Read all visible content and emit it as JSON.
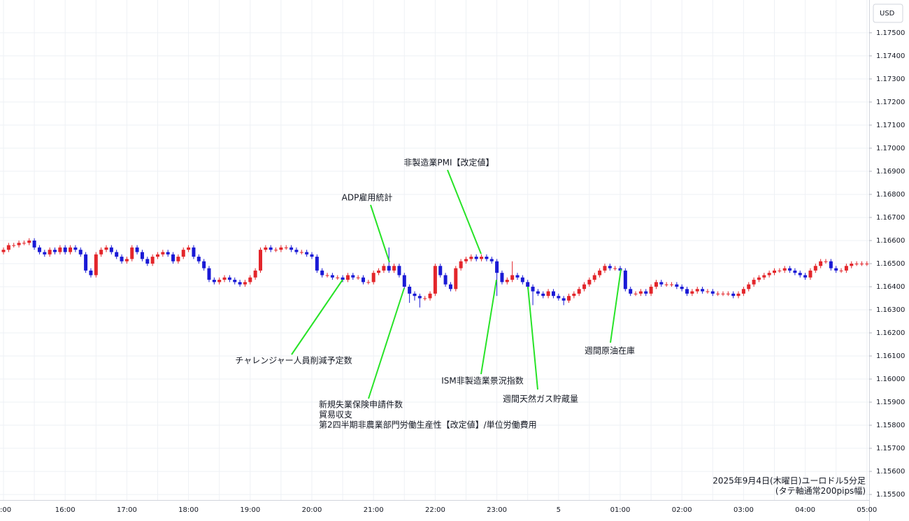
{
  "chart_data": {
    "type": "candlestick",
    "currency": "USD",
    "up_color": "#e3262b",
    "down_color": "#1a1ad6",
    "categories": [
      ":00",
      null,
      null,
      null,
      null,
      null,
      null,
      null,
      null,
      null,
      null,
      null,
      "16:00",
      null,
      null,
      null,
      null,
      null,
      null,
      null,
      null,
      null,
      null,
      null,
      "17:00",
      null,
      null,
      null,
      null,
      null,
      null,
      null,
      null,
      null,
      null,
      null,
      "18:00",
      null,
      null,
      null,
      null,
      null,
      null,
      null,
      null,
      null,
      null,
      null,
      "19:00",
      null,
      null,
      null,
      null,
      null,
      null,
      null,
      null,
      null,
      null,
      null,
      "20:00",
      null,
      null,
      null,
      null,
      null,
      null,
      null,
      null,
      null,
      null,
      null,
      "21:00",
      null,
      null,
      null,
      null,
      null,
      null,
      null,
      null,
      null,
      null,
      null,
      "22:00",
      null,
      null,
      null,
      null,
      null,
      null,
      null,
      null,
      null,
      null,
      null,
      "23:00",
      null,
      null,
      null,
      null,
      null,
      null,
      null,
      null,
      null,
      null,
      null,
      "5",
      null,
      null,
      null,
      null,
      null,
      null,
      null,
      null,
      null,
      null,
      null,
      "01:00",
      null,
      null,
      null,
      null,
      null,
      null,
      null,
      null,
      null,
      null,
      null,
      "02:00",
      null,
      null,
      null,
      null,
      null,
      null,
      null,
      null,
      null,
      null,
      null,
      "03:00",
      null,
      null,
      null,
      null,
      null,
      null,
      null,
      null,
      null,
      null,
      null,
      "04:00",
      null,
      null,
      null,
      null,
      null,
      null,
      null,
      null,
      null,
      null,
      null,
      "05:00"
    ],
    "open": [
      1.1655,
      1.1656,
      1.1658,
      1.1658,
      1.1659,
      1.1659,
      1.166,
      1.1657,
      1.1655,
      1.1654,
      1.1656,
      1.1655,
      1.1657,
      1.1655,
      1.1657,
      1.1656,
      1.1654,
      1.1647,
      1.1645,
      1.1654,
      1.1656,
      1.1657,
      1.1655,
      1.1653,
      1.1651,
      1.1652,
      1.1657,
      1.1655,
      1.1652,
      1.165,
      1.1653,
      1.1654,
      1.1655,
      1.1654,
      1.1651,
      1.1653,
      1.1656,
      1.1657,
      1.1653,
      1.1651,
      1.1648,
      1.1643,
      1.1642,
      1.1643,
      1.1644,
      1.1643,
      1.1642,
      1.1641,
      1.1642,
      1.1644,
      1.1647,
      1.1656,
      1.1657,
      1.1656,
      1.1656,
      1.1657,
      1.1657,
      1.1656,
      1.1655,
      1.1655,
      1.1654,
      1.1653,
      1.1647,
      1.1645,
      1.1645,
      1.1644,
      1.1644,
      1.1643,
      1.1645,
      1.1644,
      1.1644,
      1.1642,
      1.1642,
      1.1646,
      1.1647,
      1.1649,
      1.1647,
      1.1649,
      1.1645,
      1.164,
      1.1637,
      1.1636,
      1.1635,
      1.1635,
      1.1637,
      1.1649,
      1.1645,
      1.1641,
      1.1639,
      1.1648,
      1.1651,
      1.1652,
      1.1653,
      1.1652,
      1.1653,
      1.1652,
      1.1651,
      1.1646,
      1.1642,
      1.1643,
      1.1645,
      1.1644,
      1.1642,
      1.164,
      1.1638,
      1.1637,
      1.1636,
      1.1638,
      1.1636,
      1.1635,
      1.1634,
      1.1636,
      1.1637,
      1.1639,
      1.1641,
      1.1643,
      1.1645,
      1.1647,
      1.1649,
      1.1648,
      1.1648,
      1.1647,
      1.1639,
      1.1637,
      1.1637,
      1.1638,
      1.1637,
      1.164,
      1.1642,
      1.1641,
      1.1641,
      1.1641,
      1.164,
      1.1639,
      1.1637,
      1.1638,
      1.1639,
      1.1638,
      1.1638,
      1.1637,
      1.1637,
      1.1637,
      1.1637,
      1.1636,
      1.1637,
      1.1639,
      1.1641,
      1.1643,
      1.1644,
      1.1645,
      1.1646,
      1.1647,
      1.1647,
      1.1648,
      1.1647,
      1.1646,
      1.1645,
      1.1644,
      1.1647,
      1.1649,
      1.1651,
      1.1651,
      1.1648,
      1.1647,
      1.1647,
      1.1649,
      1.165,
      1.165,
      1.165
    ],
    "high": [
      1.1657,
      1.1659,
      1.1659,
      1.166,
      1.166,
      1.1661,
      1.1661,
      1.1658,
      1.1656,
      1.1657,
      1.1657,
      1.1658,
      1.1658,
      1.1658,
      1.1658,
      1.1657,
      1.1655,
      1.1648,
      1.1655,
      1.1657,
      1.1658,
      1.1658,
      1.1656,
      1.1654,
      1.1653,
      1.1658,
      1.1658,
      1.1656,
      1.1653,
      1.1654,
      1.1655,
      1.1656,
      1.1656,
      1.1655,
      1.1654,
      1.1657,
      1.1658,
      1.1658,
      1.1654,
      1.1652,
      1.1649,
      1.1644,
      1.1644,
      1.1645,
      1.1645,
      1.1644,
      1.1643,
      1.1643,
      1.1645,
      1.1648,
      1.1657,
      1.1658,
      1.1658,
      1.1657,
      1.1658,
      1.1658,
      1.1658,
      1.1657,
      1.1656,
      1.1656,
      1.1655,
      1.1654,
      1.1648,
      1.1646,
      1.1646,
      1.1645,
      1.1645,
      1.1646,
      1.1646,
      1.1645,
      1.1645,
      1.1643,
      1.1647,
      1.1648,
      1.165,
      1.1657,
      1.165,
      1.165,
      1.1646,
      1.1641,
      1.1638,
      1.1637,
      1.1636,
      1.1638,
      1.165,
      1.165,
      1.1646,
      1.1642,
      1.1649,
      1.1652,
      1.1653,
      1.1654,
      1.1654,
      1.1654,
      1.1654,
      1.1653,
      1.1652,
      1.1647,
      1.1644,
      1.1651,
      1.1646,
      1.1645,
      1.1643,
      1.1641,
      1.1639,
      1.1638,
      1.1639,
      1.1639,
      1.1637,
      1.1636,
      1.1637,
      1.1638,
      1.164,
      1.1642,
      1.1644,
      1.1646,
      1.1648,
      1.165,
      1.165,
      1.1649,
      1.1649,
      1.1648,
      1.164,
      1.1638,
      1.1639,
      1.1639,
      1.1641,
      1.1643,
      1.1643,
      1.1642,
      1.1642,
      1.1642,
      1.1641,
      1.164,
      1.1639,
      1.164,
      1.164,
      1.1639,
      1.1639,
      1.1638,
      1.1638,
      1.1638,
      1.1638,
      1.1638,
      1.164,
      1.1642,
      1.1644,
      1.1645,
      1.1646,
      1.1647,
      1.1648,
      1.1648,
      1.1649,
      1.1649,
      1.1648,
      1.1647,
      1.1646,
      1.1648,
      1.165,
      1.1652,
      1.1652,
      1.1652,
      1.1649,
      1.1648,
      1.165,
      1.1651,
      1.1651,
      1.1651,
      1.1651
    ],
    "low": [
      1.1654,
      1.1655,
      1.1657,
      1.1657,
      1.1658,
      1.1658,
      1.1656,
      1.1654,
      1.1653,
      1.1653,
      1.1654,
      1.1654,
      1.1654,
      1.1654,
      1.1655,
      1.1653,
      1.1646,
      1.1644,
      1.1644,
      1.1653,
      1.1655,
      1.1654,
      1.1652,
      1.165,
      1.165,
      1.1651,
      1.1654,
      1.1651,
      1.1649,
      1.1649,
      1.1652,
      1.1653,
      1.1653,
      1.165,
      1.165,
      1.1652,
      1.1655,
      1.1652,
      1.165,
      1.1647,
      1.1642,
      1.1641,
      1.1641,
      1.1642,
      1.1642,
      1.1641,
      1.164,
      1.164,
      1.1641,
      1.1643,
      1.1646,
      1.1655,
      1.1655,
      1.1655,
      1.1655,
      1.1656,
      1.1655,
      1.1654,
      1.1654,
      1.1653,
      1.1652,
      1.1646,
      1.1644,
      1.1644,
      1.1643,
      1.1643,
      1.1642,
      1.1642,
      1.1643,
      1.1643,
      1.1641,
      1.1641,
      1.1641,
      1.1645,
      1.1646,
      1.1646,
      1.1646,
      1.1644,
      1.1639,
      1.1633,
      1.1634,
      1.1631,
      1.1634,
      1.1634,
      1.1636,
      1.1644,
      1.164,
      1.1638,
      1.1638,
      1.1647,
      1.165,
      1.1651,
      1.1651,
      1.1651,
      1.1651,
      1.165,
      1.1636,
      1.1641,
      1.1641,
      1.1642,
      1.1643,
      1.1641,
      1.1639,
      1.1632,
      1.1636,
      1.1635,
      1.1635,
      1.1635,
      1.1634,
      1.1632,
      1.1633,
      1.1635,
      1.1636,
      1.1638,
      1.164,
      1.1642,
      1.1644,
      1.1646,
      1.1647,
      1.1647,
      1.1646,
      1.1638,
      1.1636,
      1.1636,
      1.1636,
      1.1636,
      1.1636,
      1.1639,
      1.164,
      1.164,
      1.164,
      1.1639,
      1.1638,
      1.1636,
      1.1636,
      1.1637,
      1.1637,
      1.1637,
      1.1636,
      1.1636,
      1.1636,
      1.1636,
      1.1635,
      1.1635,
      1.1636,
      1.1638,
      1.164,
      1.1642,
      1.1643,
      1.1644,
      1.1645,
      1.1646,
      1.1646,
      1.1646,
      1.1645,
      1.1644,
      1.1643,
      1.1643,
      1.1646,
      1.1648,
      1.165,
      1.1647,
      1.1646,
      1.1646,
      1.1646,
      1.1648,
      1.1649,
      1.1649,
      1.1649
    ],
    "close": [
      1.1656,
      1.1658,
      1.1658,
      1.1659,
      1.1659,
      1.166,
      1.1657,
      1.1655,
      1.1654,
      1.1656,
      1.1655,
      1.1657,
      1.1655,
      1.1657,
      1.1656,
      1.1654,
      1.1647,
      1.1645,
      1.1654,
      1.1656,
      1.1657,
      1.1655,
      1.1653,
      1.1651,
      1.1652,
      1.1657,
      1.1655,
      1.1652,
      1.165,
      1.1653,
      1.1654,
      1.1655,
      1.1654,
      1.1651,
      1.1653,
      1.1656,
      1.1657,
      1.1653,
      1.1651,
      1.1648,
      1.1643,
      1.1642,
      1.1643,
      1.1644,
      1.1643,
      1.1642,
      1.1641,
      1.1642,
      1.1644,
      1.1647,
      1.1656,
      1.1657,
      1.1656,
      1.1656,
      1.1657,
      1.1657,
      1.1656,
      1.1655,
      1.1655,
      1.1654,
      1.1653,
      1.1647,
      1.1645,
      1.1645,
      1.1644,
      1.1644,
      1.1643,
      1.1645,
      1.1644,
      1.1644,
      1.1642,
      1.1642,
      1.1646,
      1.1647,
      1.1649,
      1.1647,
      1.1649,
      1.1645,
      1.164,
      1.1637,
      1.1636,
      1.1635,
      1.1635,
      1.1637,
      1.1649,
      1.1645,
      1.1641,
      1.1639,
      1.1648,
      1.1651,
      1.1652,
      1.1653,
      1.1652,
      1.1653,
      1.1652,
      1.1651,
      1.1646,
      1.1642,
      1.1643,
      1.1645,
      1.1644,
      1.1642,
      1.164,
      1.1638,
      1.1637,
      1.1636,
      1.1638,
      1.1636,
      1.1635,
      1.1634,
      1.1636,
      1.1637,
      1.1639,
      1.1641,
      1.1643,
      1.1645,
      1.1647,
      1.1649,
      1.1648,
      1.1648,
      1.1647,
      1.1639,
      1.1637,
      1.1637,
      1.1638,
      1.1637,
      1.164,
      1.1642,
      1.1641,
      1.1641,
      1.1641,
      1.164,
      1.1639,
      1.1637,
      1.1638,
      1.1639,
      1.1638,
      1.1638,
      1.1637,
      1.1637,
      1.1637,
      1.1637,
      1.1636,
      1.1637,
      1.1639,
      1.1641,
      1.1643,
      1.1644,
      1.1645,
      1.1646,
      1.1647,
      1.1647,
      1.1648,
      1.1647,
      1.1646,
      1.1645,
      1.1644,
      1.1647,
      1.1649,
      1.1651,
      1.1651,
      1.1648,
      1.1647,
      1.1647,
      1.1649,
      1.165,
      1.165,
      1.165,
      1.165
    ],
    "ylim": [
      1.15476,
      1.17642
    ],
    "yticks": [
      {
        "value": 1.155,
        "label": "1.15500"
      },
      {
        "value": 1.156,
        "label": "1.15600"
      },
      {
        "value": 1.157,
        "label": "1.15700"
      },
      {
        "value": 1.158,
        "label": "1.15800"
      },
      {
        "value": 1.159,
        "label": "1.15900"
      },
      {
        "value": 1.16,
        "label": "1.16000"
      },
      {
        "value": 1.161,
        "label": "1.16100"
      },
      {
        "value": 1.162,
        "label": "1.16200"
      },
      {
        "value": 1.163,
        "label": "1.16300"
      },
      {
        "value": 1.164,
        "label": "1.16400"
      },
      {
        "value": 1.165,
        "label": "1.16500"
      },
      {
        "value": 1.166,
        "label": "1.16600"
      },
      {
        "value": 1.167,
        "label": "1.16700"
      },
      {
        "value": 1.168,
        "label": "1.16800"
      },
      {
        "value": 1.169,
        "label": "1.16900"
      },
      {
        "value": 1.17,
        "label": "1.17000"
      },
      {
        "value": 1.171,
        "label": "1.17100"
      },
      {
        "value": 1.172,
        "label": "1.17200"
      },
      {
        "value": 1.173,
        "label": "1.17300"
      },
      {
        "value": 1.174,
        "label": "1.17400"
      },
      {
        "value": 1.175,
        "label": "1.17500"
      }
    ],
    "grid": true,
    "annotations": [
      [
        "ADP雇用統計"
      ],
      [
        "非製造業PMI【改定値】"
      ],
      [
        "チャレンジャー人員削減予定数"
      ],
      [
        "新規失業保険申請件数",
        "貿易収支",
        "第2四半期非農業部門労働生産性【改定値】/単位労働費用"
      ],
      [
        "ISM非製造業景況指数"
      ],
      [
        "週間天然ガス貯蔵量"
      ],
      [
        "週間原油在庫"
      ]
    ],
    "note": [
      "2025年9月4日(木曜日)ユーロドル5分足",
      "(タテ軸通常200pips幅)"
    ]
  }
}
